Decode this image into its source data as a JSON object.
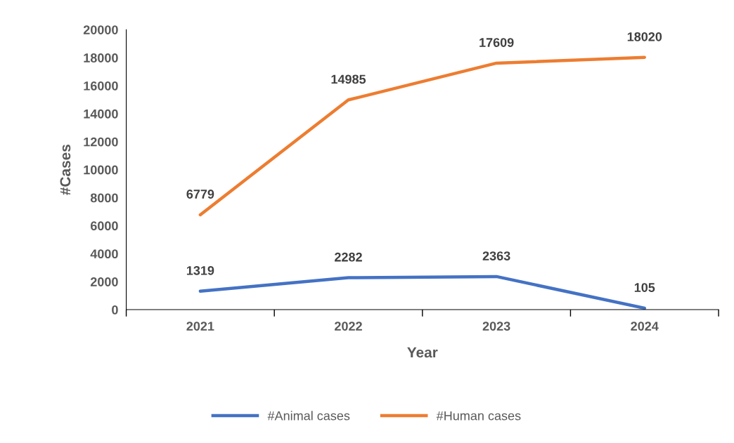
{
  "chart_data": {
    "type": "line",
    "xlabel": "Year",
    "ylabel": "#Cases",
    "categories": [
      "2021",
      "2022",
      "2023",
      "2024"
    ],
    "series": [
      {
        "name": "#Animal cases",
        "color": "#4472c4",
        "values": [
          1319,
          2282,
          2363,
          105
        ]
      },
      {
        "name": "#Human cases",
        "color": "#ed7d31",
        "values": [
          6779,
          14985,
          17609,
          18020
        ]
      }
    ],
    "ylim": [
      0,
      20000
    ],
    "yticks": [
      0,
      2000,
      4000,
      6000,
      8000,
      10000,
      12000,
      14000,
      16000,
      18000,
      20000
    ],
    "data_labels": true,
    "grid": false,
    "legend": "bottom",
    "marker": "none",
    "line_style": "solid"
  }
}
